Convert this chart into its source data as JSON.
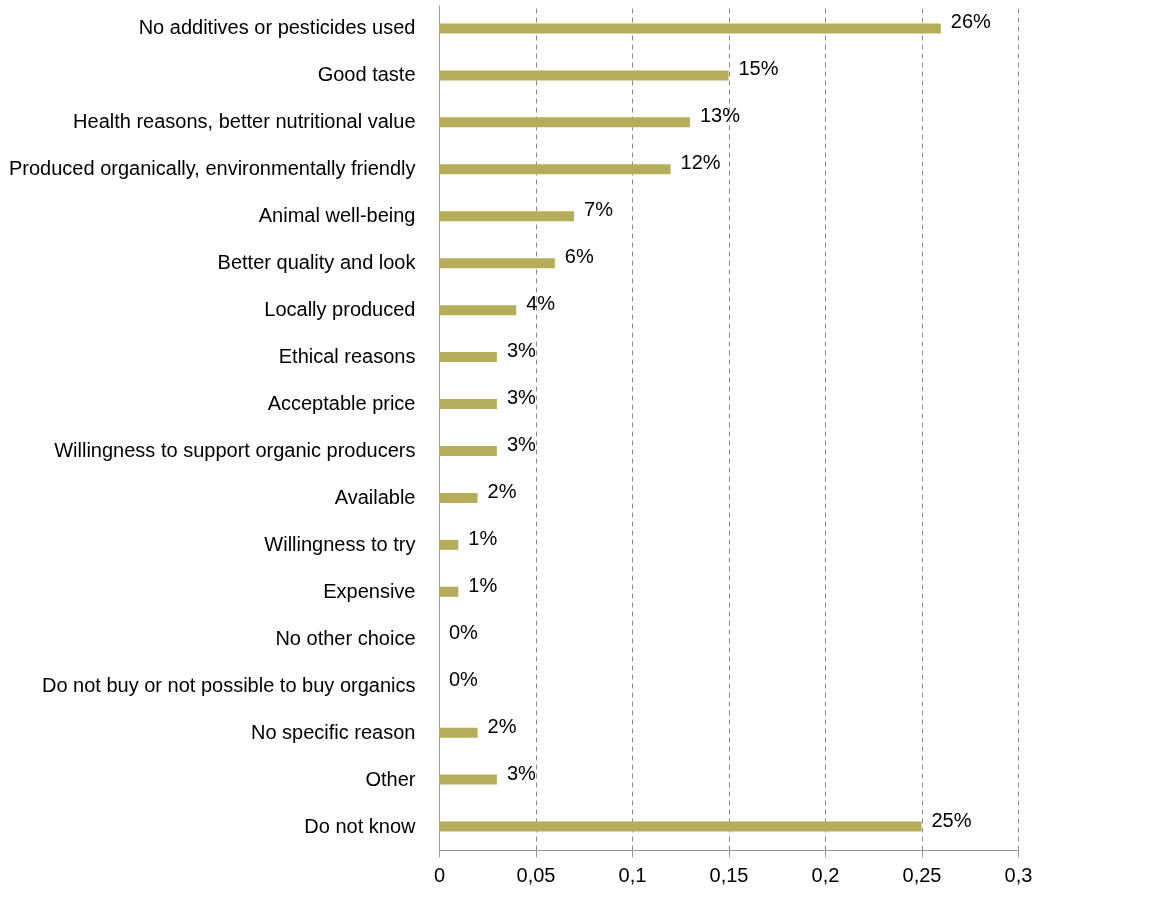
{
  "chart_data": {
    "type": "bar",
    "orientation": "horizontal",
    "categories": [
      "No additives or pesticides used",
      "Good taste",
      "Health reasons, better nutritional value",
      "Produced organically, environmentally friendly",
      "Animal well-being",
      "Better quality and look",
      "Locally produced",
      "Ethical reasons",
      "Acceptable price",
      "Willingness to support organic producers",
      "Available",
      "Willingness to try",
      "Expensive",
      "No other choice",
      "Do not buy or not possible to buy organics",
      "No specific reason",
      "Other",
      "Do not know"
    ],
    "values": [
      0.26,
      0.15,
      0.13,
      0.12,
      0.07,
      0.06,
      0.04,
      0.03,
      0.03,
      0.03,
      0.02,
      0.01,
      0.01,
      0,
      0,
      0.02,
      0.03,
      0.25
    ],
    "value_labels": [
      "26%",
      "15%",
      "13%",
      "12%",
      "7%",
      "6%",
      "4%",
      "3%",
      "3%",
      "3%",
      "2%",
      "1%",
      "1%",
      "0%",
      "0%",
      "2%",
      "3%",
      "25%"
    ],
    "color": "#b5ad5a",
    "xlim": [
      0,
      0.3
    ],
    "xticks": [
      0,
      {
        "value": 0.05,
        "label": "0,05"
      },
      {
        "value": 0.1,
        "label": "0,1"
      },
      {
        "value": 0.15,
        "label": "0,15"
      },
      {
        "value": 0.2,
        "label": "0,2"
      },
      {
        "value": 0.25,
        "label": "0,25"
      },
      {
        "value": 0.3,
        "label": "0,3"
      }
    ],
    "grid": "x"
  }
}
